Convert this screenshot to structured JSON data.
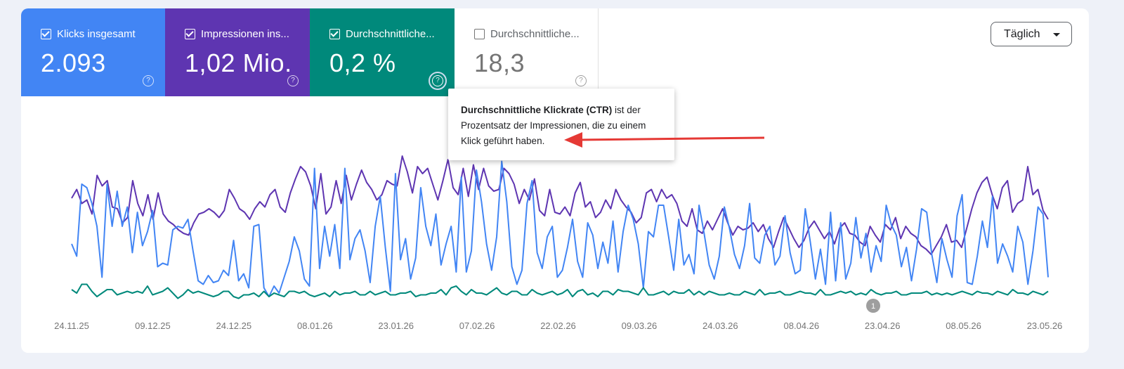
{
  "metrics": [
    {
      "id": "klicks",
      "label": "Klicks insgesamt",
      "value": "2.093",
      "checked": true,
      "color": "#4285f4"
    },
    {
      "id": "impressionen",
      "label": "Impressionen ins...",
      "value": "1,02 Mio.",
      "checked": true,
      "color": "#5e35b1"
    },
    {
      "id": "ctr",
      "label": "Durchschnittliche...",
      "value": "0,2 %",
      "checked": true,
      "color": "#00897b"
    },
    {
      "id": "position",
      "label": "Durchschnittliche...",
      "value": "18,3",
      "checked": false,
      "color": "#ffffff"
    }
  ],
  "help_icon": "?",
  "dropdown": {
    "label": "Täglich",
    "icon": "caret-down-icon"
  },
  "tooltip": {
    "title": "Durchschnittliche Klickrate (CTR)",
    "text_after_title": " ist der Prozentsatz der Impressionen, die zu einem Klick geführt haben."
  },
  "annotation_marker": "1",
  "annotation_arrow_color": "#e53935",
  "chart_data": {
    "type": "line",
    "x_labels": [
      "24.11.25",
      "09.12.25",
      "24.12.25",
      "08.01.26",
      "23.01.26",
      "07.02.26",
      "22.02.26",
      "09.03.26",
      "24.03.26",
      "08.04.26",
      "23.04.26",
      "08.05.26",
      "23.05.26"
    ],
    "x_range": [
      "24.11.25",
      "23.05.26"
    ],
    "grid": false,
    "series": [
      {
        "id": "impressionen",
        "color": "#5e35b1",
        "values": [
          58,
          63,
          55,
          57,
          49,
          71,
          65,
          68,
          53,
          52,
          44,
          47,
          68,
          55,
          48,
          60,
          46,
          61,
          49,
          45,
          43,
          40,
          38,
          37,
          44,
          49,
          50,
          52,
          50,
          47,
          51,
          63,
          58,
          52,
          50,
          46,
          52,
          56,
          53,
          60,
          63,
          53,
          50,
          61,
          69,
          76,
          73,
          65,
          52,
          72,
          49,
          53,
          68,
          55,
          71,
          57,
          66,
          74,
          67,
          63,
          57,
          60,
          68,
          66,
          65,
          82,
          73,
          61,
          76,
          72,
          75,
          66,
          57,
          68,
          80,
          64,
          60,
          75,
          59,
          77,
          63,
          75,
          65,
          62,
          63,
          75,
          72,
          66,
          55,
          63,
          57,
          69,
          51,
          48,
          63,
          50,
          49,
          53,
          48,
          61,
          67,
          53,
          56,
          47,
          50,
          57,
          52,
          63,
          57,
          53,
          50,
          44,
          47,
          61,
          63,
          56,
          63,
          58,
          60,
          55,
          45,
          42,
          52,
          40,
          38,
          45,
          40,
          46,
          52,
          44,
          37,
          42,
          40,
          41,
          44,
          39,
          43,
          35,
          30,
          39,
          47,
          41,
          35,
          30,
          34,
          41,
          45,
          40,
          35,
          39,
          32,
          41,
          44,
          38,
          37,
          33,
          31,
          42,
          37,
          33,
          43,
          40,
          47,
          35,
          42,
          38,
          36,
          31,
          29,
          26,
          31,
          36,
          43,
          33,
          34,
          30,
          41,
          52,
          61,
          67,
          70,
          60,
          52,
          64,
          68,
          50,
          55,
          57,
          76,
          60,
          63,
          51,
          46
        ]
      },
      {
        "id": "klicks",
        "color": "#4285f4",
        "values": [
          32,
          25,
          66,
          64,
          55,
          42,
          13,
          66,
          42,
          62,
          42,
          53,
          27,
          50,
          31,
          39,
          51,
          19,
          21,
          20,
          40,
          42,
          41,
          46,
          28,
          11,
          9,
          14,
          10,
          11,
          17,
          14,
          34,
          11,
          15,
          7,
          42,
          43,
          7,
          2,
          8,
          4,
          13,
          22,
          36,
          28,
          12,
          8,
          75,
          18,
          42,
          25,
          43,
          18,
          75,
          23,
          35,
          40,
          28,
          10,
          42,
          59,
          30,
          5,
          72,
          23,
          35,
          12,
          24,
          64,
          42,
          31,
          49,
          20,
          32,
          42,
          16,
          70,
          16,
          28,
          74,
          56,
          32,
          17,
          36,
          79,
          56,
          19,
          9,
          17,
          55,
          68,
          27,
          18,
          36,
          42,
          13,
          17,
          30,
          46,
          22,
          13,
          44,
          37,
          18,
          33,
          21,
          45,
          16,
          39,
          54,
          46,
          32,
          7,
          39,
          36,
          54,
          54,
          36,
          17,
          46,
          20,
          26,
          15,
          54,
          38,
          20,
          12,
          25,
          53,
          41,
          26,
          18,
          31,
          55,
          24,
          21,
          37,
          42,
          20,
          25,
          48,
          27,
          15,
          17,
          52,
          33,
          12,
          29,
          9,
          50,
          11,
          44,
          12,
          21,
          47,
          24,
          38,
          16,
          31,
          22,
          54,
          43,
          37,
          19,
          30,
          11,
          29,
          52,
          50,
          26,
          10,
          35,
          23,
          13,
          48,
          60,
          10,
          9,
          25,
          45,
          30,
          59,
          21,
          32,
          25,
          16,
          42,
          33,
          9,
          28,
          53,
          49,
          13
        ]
      },
      {
        "id": "ctr",
        "color": "#00897b",
        "values": [
          6,
          4,
          9,
          9,
          5,
          2,
          4,
          6,
          6,
          3,
          4,
          5,
          4,
          5,
          4,
          8,
          3,
          4,
          5,
          7,
          4,
          1,
          3,
          6,
          4,
          5,
          4,
          3,
          2,
          3,
          5,
          5,
          2,
          1,
          3,
          3,
          4,
          2,
          5,
          2,
          4,
          3,
          2,
          5,
          5,
          4,
          5,
          3,
          2,
          3,
          4,
          2,
          5,
          3,
          4,
          4,
          5,
          3,
          3,
          5,
          3,
          4,
          5,
          3,
          3,
          4,
          4,
          5,
          2,
          3,
          3,
          4,
          4,
          6,
          3,
          7,
          8,
          5,
          3,
          6,
          4,
          4,
          3,
          5,
          7,
          4,
          3,
          5,
          5,
          3,
          3,
          6,
          4,
          3,
          4,
          5,
          3,
          4,
          6,
          2,
          5,
          6,
          3,
          4,
          2,
          5,
          5,
          3,
          6,
          5,
          5,
          4,
          3,
          7,
          3,
          3,
          4,
          5,
          3,
          5,
          4,
          4,
          6,
          3,
          5,
          3,
          5,
          4,
          3,
          3,
          4,
          3,
          3,
          5,
          4,
          3,
          6,
          3,
          4,
          4,
          5,
          3,
          3,
          4,
          5,
          4,
          4,
          3,
          6,
          3,
          3,
          4,
          5,
          4,
          5,
          3,
          4,
          3,
          6,
          4,
          3,
          4,
          4,
          5,
          3,
          3,
          4,
          4,
          4,
          5,
          3,
          4,
          3,
          4,
          3,
          4,
          5,
          4,
          3,
          5,
          4,
          4,
          3,
          5,
          4,
          3,
          6,
          4,
          4,
          3,
          5,
          4,
          3,
          5
        ]
      }
    ]
  }
}
